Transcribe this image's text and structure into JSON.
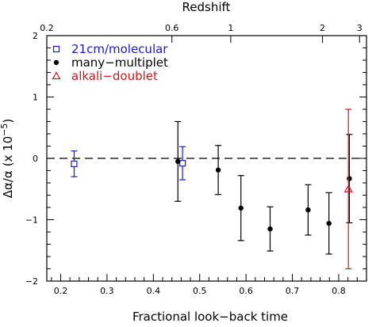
{
  "chart_data": {
    "type": "scatter",
    "xlabel": "Fractional look−back time",
    "top_label": "Redshift",
    "ylim": [
      -2,
      2
    ],
    "xlim": [
      0.17,
      0.86
    ],
    "x_ticks": [
      "0.2",
      "0.3",
      "0.4",
      "0.5",
      "0.6",
      "0.7",
      "0.8"
    ],
    "y_ticks": [
      "−2",
      "−1",
      "0",
      "1",
      "2"
    ],
    "top_ticks": [
      {
        "label": "0.2",
        "x": 0.17
      },
      {
        "label": "0.6",
        "x": 0.44
      },
      {
        "label": "1",
        "x": 0.567
      },
      {
        "label": "2",
        "x": 0.765
      },
      {
        "label": "3",
        "x": 0.845
      }
    ],
    "zero_line": 0,
    "legend_position": "top-left",
    "series": [
      {
        "name": "21cm/molecular",
        "color": "#1a1acc",
        "marker": "open-square",
        "points": [
          {
            "x": 0.229,
            "y": -0.09,
            "err": 0.21
          },
          {
            "x": 0.463,
            "y": -0.08,
            "err": 0.27
          }
        ]
      },
      {
        "name": "many−multiplet",
        "color": "#000000",
        "marker": "filled-circle",
        "points": [
          {
            "x": 0.453,
            "y": -0.05,
            "err": 0.65
          },
          {
            "x": 0.54,
            "y": -0.19,
            "err": 0.4
          },
          {
            "x": 0.589,
            "y": -0.81,
            "err": 0.53
          },
          {
            "x": 0.652,
            "y": -1.15,
            "err": 0.36
          },
          {
            "x": 0.734,
            "y": -0.84,
            "err": 0.41
          },
          {
            "x": 0.779,
            "y": -1.06,
            "err": 0.5
          },
          {
            "x": 0.823,
            "y": -0.33,
            "err": 0.72
          }
        ]
      },
      {
        "name": "alkali−doublet",
        "color": "#cc1a1a",
        "marker": "open-triangle",
        "points": [
          {
            "x": 0.821,
            "y": -0.5,
            "err": 1.3
          }
        ]
      }
    ]
  }
}
